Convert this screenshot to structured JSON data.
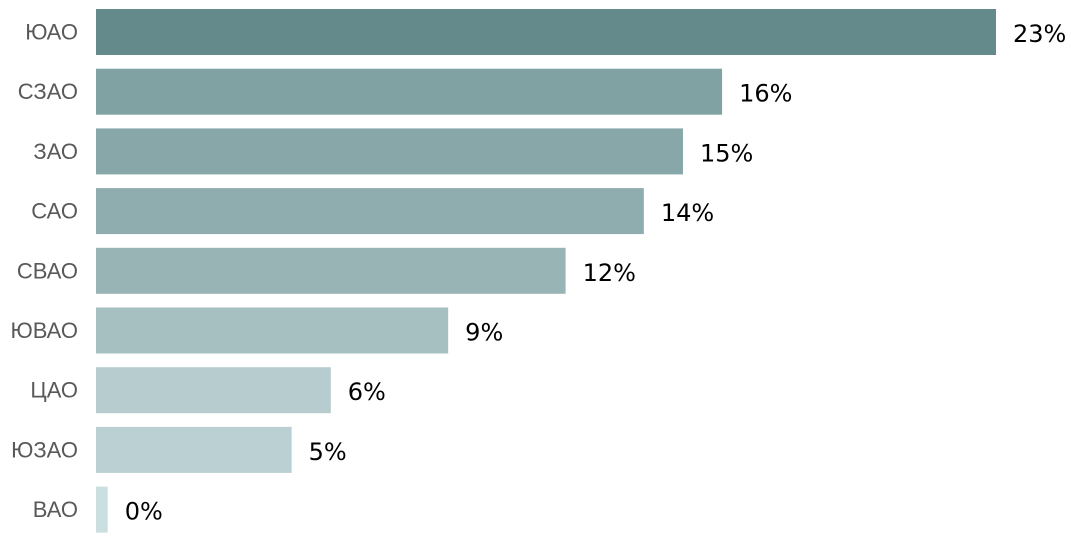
{
  "chart_data": {
    "type": "bar",
    "orientation": "horizontal",
    "categories": [
      "ЮАО",
      "СЗАО",
      "ЗАО",
      "САО",
      "СВАО",
      "ЮВАО",
      "ЦАО",
      "ЮЗАО",
      "ВАО"
    ],
    "values": [
      23,
      16,
      15,
      14,
      12,
      9,
      6,
      5,
      0.3
    ],
    "value_labels": [
      "23%",
      "16%",
      "15%",
      "14%",
      "12%",
      "9%",
      "6%",
      "5%",
      "0%"
    ],
    "unit": "%",
    "xlim": [
      0,
      23
    ],
    "grid": false,
    "legend": "none",
    "title": "",
    "xlabel": "",
    "ylabel": "",
    "colors": [
      "#648a8c",
      "#80a2a3",
      "#88a7a9",
      "#8fadaf",
      "#99b4b5",
      "#a6bfc1",
      "#b7ccce",
      "#bad0d2",
      "#cbdfe0"
    ]
  }
}
